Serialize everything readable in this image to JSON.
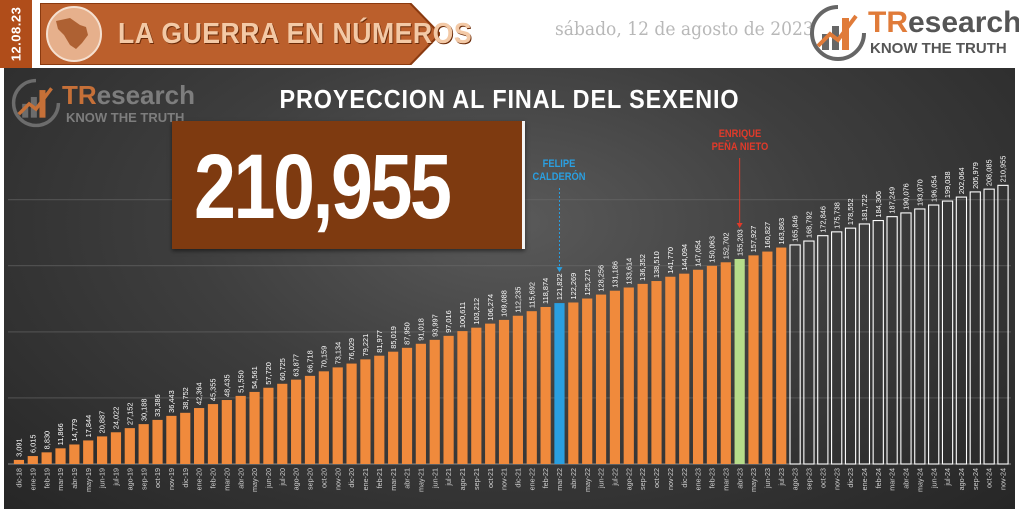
{
  "header": {
    "date_tab": "12.08.23",
    "title": "LA GUERRA EN NÚMEROS",
    "date_text": "sábado, 12 de agosto de 2023",
    "brand": {
      "name_part1": "TR",
      "name_part2": "esearch",
      "tagline": "KNOW THE TRUTH"
    }
  },
  "colors": {
    "accent": "#b04d1a",
    "actual": "#f08a3c",
    "calderon": "#2a9fe0",
    "pena_nieto": "#b6dc8a",
    "projection_outline": "#ffffff",
    "total_box": "#7e3a10"
  },
  "chart_data": {
    "type": "bar",
    "title": "PROYECCION AL FINAL DEL SEXENIO",
    "total_label": "210,955",
    "annotations": [
      {
        "text_line1": "FELIPE",
        "text_line2": "CALDERÓN",
        "category": "mar-22",
        "color": "#2a9fe0"
      },
      {
        "text_line1": "ENRIQUE",
        "text_line2": "PEÑA NIETO",
        "category": "abr-23",
        "color": "#e03a2a"
      }
    ],
    "categories": [
      "dic-18",
      "ene-19",
      "feb-19",
      "mar-19",
      "abr-19",
      "may-19",
      "jun-19",
      "jul-19",
      "ago-19",
      "sep-19",
      "oct-19",
      "nov-19",
      "dic-19",
      "ene-20",
      "feb-20",
      "mar-20",
      "abr-20",
      "may-20",
      "jun-20",
      "jul-20",
      "ago-20",
      "sep-20",
      "oct-20",
      "nov-20",
      "dic-20",
      "ene-21",
      "feb-21",
      "mar-21",
      "abr-21",
      "may-21",
      "jun-21",
      "jul-21",
      "ago-21",
      "sep-21",
      "oct-21",
      "nov-21",
      "dic-21",
      "ene-22",
      "feb-22",
      "mar-22",
      "abr-22",
      "may-22",
      "jun-22",
      "jul-22",
      "ago-22",
      "sep-22",
      "oct-22",
      "nov-22",
      "dic-22",
      "ene-23",
      "feb-23",
      "mar-23",
      "abr-23",
      "may-23",
      "jun-23",
      "jul-23",
      "ago-23",
      "sep-23",
      "oct-23",
      "nov-23",
      "dic-23",
      "ene-24",
      "feb-24",
      "mar-24",
      "abr-24",
      "may-24",
      "jun-24",
      "jul-24",
      "ago-24",
      "sep-24",
      "oct-24",
      "nov-24"
    ],
    "values": [
      3091,
      6015,
      8830,
      11866,
      14779,
      17844,
      20887,
      24022,
      27152,
      30188,
      33386,
      36443,
      38752,
      42364,
      45355,
      48435,
      51550,
      54561,
      57720,
      60725,
      63877,
      66718,
      70159,
      73134,
      76029,
      79221,
      81977,
      85019,
      87950,
      91018,
      93997,
      97016,
      100611,
      103212,
      106274,
      109088,
      112235,
      115692,
      118874,
      121822,
      122269,
      125271,
      128256,
      131186,
      133614,
      136352,
      138510,
      141770,
      144094,
      147054,
      150063,
      152702,
      155203,
      157927,
      160827,
      163863,
      165846,
      168792,
      172846,
      175738,
      178552,
      181722,
      184306,
      187249,
      190076,
      193070,
      196054,
      199038,
      202064,
      205979,
      208085,
      210955
    ],
    "value_labels": [
      "3,091",
      "6,015",
      "8,830",
      "11,866",
      "14,779",
      "17,844",
      "20,887",
      "24,022",
      "27,152",
      "30,188",
      "33,386",
      "36,443",
      "38,752",
      "42,364",
      "45,355",
      "48,435",
      "51,550",
      "54,561",
      "57,720",
      "60,725",
      "63,877",
      "66,718",
      "70,159",
      "73,134",
      "76,029",
      "79,221",
      "81,977",
      "85,019",
      "87,950",
      "91,018",
      "93,997",
      "97,016",
      "100,611",
      "103,212",
      "106,274",
      "109,088",
      "112,235",
      "115,692",
      "118,874",
      "121,822",
      "122,269",
      "125,271",
      "128,256",
      "131,186",
      "133,614",
      "136,352",
      "138,510",
      "141,770",
      "144,094",
      "147,054",
      "150,063",
      "152,702",
      "155,203",
      "157,927",
      "160,827",
      "163,863",
      "165,846",
      "168,792",
      "172,846",
      "175,738",
      "178,552",
      "181,722",
      "184,306",
      "187,249",
      "190,076",
      "193,070",
      "196,054",
      "199,038",
      "202,064",
      "205,979",
      "208,085",
      "210,955"
    ],
    "bar_roles": [
      "actual",
      "actual",
      "actual",
      "actual",
      "actual",
      "actual",
      "actual",
      "actual",
      "actual",
      "actual",
      "actual",
      "actual",
      "actual",
      "actual",
      "actual",
      "actual",
      "actual",
      "actual",
      "actual",
      "actual",
      "actual",
      "actual",
      "actual",
      "actual",
      "actual",
      "actual",
      "actual",
      "actual",
      "actual",
      "actual",
      "actual",
      "actual",
      "actual",
      "actual",
      "actual",
      "actual",
      "actual",
      "actual",
      "actual",
      "calderon",
      "actual",
      "actual",
      "actual",
      "actual",
      "actual",
      "actual",
      "actual",
      "actual",
      "actual",
      "actual",
      "actual",
      "actual",
      "pena_nieto",
      "actual",
      "actual",
      "actual",
      "projection",
      "projection",
      "projection",
      "projection",
      "projection",
      "projection",
      "projection",
      "projection",
      "projection",
      "projection",
      "projection",
      "projection",
      "projection",
      "projection",
      "projection",
      "projection"
    ],
    "ylim": [
      0,
      215000
    ],
    "grid": true
  }
}
